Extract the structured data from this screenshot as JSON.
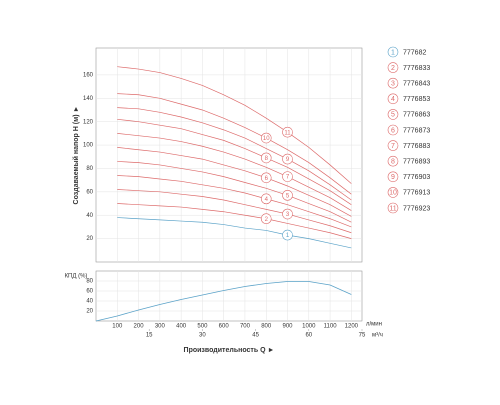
{
  "chart_data": [
    {
      "type": "line",
      "y_label": "Создаваемый напор Н (м) ►",
      "x": [
        100,
        200,
        300,
        400,
        500,
        600,
        700,
        800,
        900,
        1000,
        1100,
        1200
      ],
      "xlim": [
        0,
        1250
      ],
      "ylim": [
        0,
        183
      ],
      "yticks": [
        20,
        40,
        60,
        80,
        100,
        120,
        140,
        160
      ],
      "grid": true,
      "series": [
        {
          "number": "1",
          "name": "777682",
          "color": "#5aa2c8",
          "values": [
            38,
            37,
            36,
            35,
            34,
            32,
            29,
            27,
            23,
            20,
            16,
            12
          ]
        },
        {
          "number": "2",
          "name": "7776833",
          "color": "#dd6b6b",
          "values": [
            50,
            49,
            48,
            47,
            45,
            43,
            40,
            37,
            33,
            29,
            25,
            20
          ]
        },
        {
          "number": "3",
          "name": "7776843",
          "color": "#dd6b6b",
          "values": [
            62,
            61,
            60,
            58,
            56,
            53,
            49,
            45,
            41,
            36,
            31,
            25
          ]
        },
        {
          "number": "4",
          "name": "7776853",
          "color": "#dd6b6b",
          "values": [
            74,
            73,
            71,
            69,
            66,
            63,
            59,
            54,
            49,
            43,
            37,
            30
          ]
        },
        {
          "number": "5",
          "name": "7776863",
          "color": "#dd6b6b",
          "values": [
            86,
            85,
            83,
            80,
            77,
            73,
            68,
            63,
            57,
            50,
            43,
            34
          ]
        },
        {
          "number": "6",
          "name": "7776873",
          "color": "#dd6b6b",
          "values": [
            98,
            96,
            94,
            91,
            88,
            83,
            78,
            72,
            65,
            57,
            49,
            39
          ]
        },
        {
          "number": "7",
          "name": "7776883",
          "color": "#dd6b6b",
          "values": [
            110,
            108,
            106,
            103,
            99,
            94,
            88,
            81,
            73,
            64,
            55,
            44
          ]
        },
        {
          "number": "8",
          "name": "7776893",
          "color": "#dd6b6b",
          "values": [
            122,
            120,
            117,
            114,
            109,
            104,
            97,
            89,
            81,
            71,
            61,
            49
          ]
        },
        {
          "number": "9",
          "name": "7776903",
          "color": "#dd6b6b",
          "values": [
            132,
            131,
            128,
            124,
            119,
            113,
            106,
            97,
            88,
            78,
            66,
            53
          ]
        },
        {
          "number": "10",
          "name": "7776913",
          "color": "#dd6b6b",
          "values": [
            144,
            143,
            140,
            135,
            130,
            123,
            115,
            106,
            96,
            85,
            72,
            58
          ]
        },
        {
          "number": "11",
          "name": "7776923",
          "color": "#dd6b6b",
          "values": [
            167,
            165,
            162,
            157,
            151,
            143,
            134,
            123,
            111,
            98,
            83,
            67
          ]
        }
      ]
    },
    {
      "type": "line",
      "y_label": "КПД (%)",
      "x_label": "Производительность Q ►",
      "x": [
        0,
        100,
        200,
        300,
        400,
        500,
        600,
        700,
        800,
        900,
        1000,
        1100,
        1200
      ],
      "values": [
        0,
        10,
        22,
        33,
        43,
        52,
        61,
        69,
        75,
        79,
        79,
        72,
        53
      ],
      "color": "#5aa2c8",
      "xlim": [
        0,
        1250
      ],
      "xticks": [
        100,
        200,
        300,
        400,
        500,
        600,
        700,
        800,
        900,
        1000,
        1100,
        1200
      ],
      "x_unit": "л/мин",
      "x2lim": [
        0,
        75
      ],
      "x2ticks": [
        15,
        30,
        45,
        60,
        75
      ],
      "x2_unit": "м³/ч",
      "ylim": [
        0,
        100
      ],
      "yticks": [
        20,
        40,
        60,
        80
      ],
      "grid": true
    }
  ]
}
